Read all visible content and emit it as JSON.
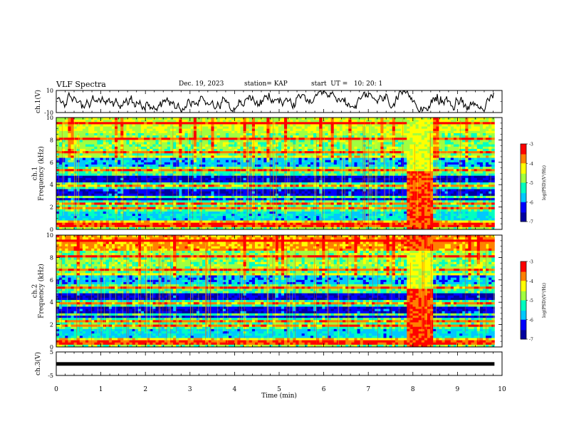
{
  "header": {
    "title": "VLF Spectra",
    "date": "Dec. 19, 2023",
    "station": "station= KAP",
    "start": "start  UT =   10: 20: 1"
  },
  "chart_data": [
    {
      "type": "line",
      "panel": "ch1-waveform",
      "ylabel": "ch.1(V)",
      "ylim": [
        -10,
        10
      ],
      "yticks": [
        "10",
        "-10"
      ]
    },
    {
      "type": "heatmap",
      "panel": "ch1-spectrogram",
      "ylabel_line1": "ch.1",
      "ylabel_line2": "Frequency (kHz)",
      "ylim": [
        0,
        10
      ],
      "yticks": [
        "0",
        "2",
        "4",
        "6",
        "8",
        "10"
      ],
      "colorbar": {
        "range": [
          -7,
          -3
        ],
        "ticks": [
          "-3",
          "-4",
          "-5",
          "-6",
          "-7"
        ],
        "label": "log(PSD)(V²/Hz)"
      }
    },
    {
      "type": "heatmap",
      "panel": "ch2-spectrogram",
      "ylabel_line1": "ch.2",
      "ylabel_line2": "Frequency (kHz)",
      "ylim": [
        0,
        10
      ],
      "yticks": [
        "0",
        "2",
        "4",
        "6",
        "8",
        "10"
      ],
      "colorbar": {
        "range": [
          -7,
          -3
        ],
        "ticks": [
          "-3",
          "-4",
          "-5",
          "-6",
          "-7"
        ],
        "label": "log(PSD)(V²/Hz)"
      }
    },
    {
      "type": "line",
      "panel": "ch3-waveform",
      "ylabel": "ch.3(V)",
      "ylim": [
        -5,
        5
      ],
      "yticks": [
        "5",
        "-5"
      ]
    }
  ],
  "xaxis": {
    "label": "Time (min)",
    "range": [
      0,
      10
    ],
    "ticks": [
      "0",
      "1",
      "2",
      "3",
      "4",
      "5",
      "6",
      "7",
      "8",
      "9",
      "10"
    ],
    "data_end": 9.83
  },
  "event_window": [
    7.87,
    8.45
  ],
  "colors": {
    "cmap": [
      "#0000a0",
      "#0000ff",
      "#00c8ff",
      "#00ffc0",
      "#a0ff40",
      "#ffff00",
      "#ff8000",
      "#ff0000"
    ],
    "frame": "#000000"
  }
}
